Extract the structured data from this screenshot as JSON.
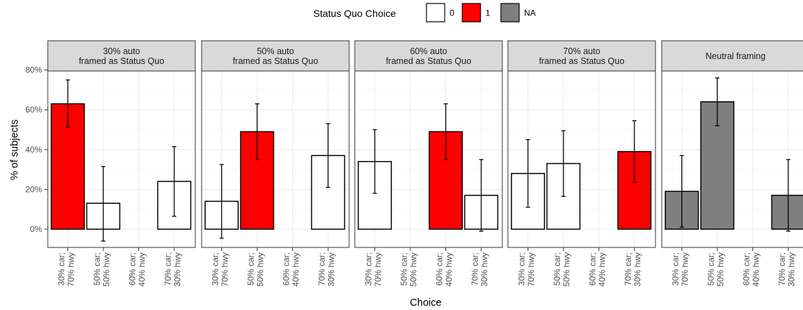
{
  "chart_data": {
    "type": "bar",
    "xlabel": "Choice",
    "ylabel": "% of subjects",
    "ylim": [
      -9,
      91
    ],
    "y_ticks": [
      0,
      20,
      40,
      60,
      80
    ],
    "y_tick_labels": [
      "0%",
      "20%",
      "40%",
      "60%",
      "80%"
    ],
    "categories": [
      "30% car;\n70% hwy",
      "50% car;\n50% hwy",
      "60% car;\n40% hwy",
      "70% car;\n30% hwy"
    ],
    "grid": true,
    "legend": {
      "title": "Status Quo Choice",
      "placement": "top-center",
      "items": [
        {
          "label": "0",
          "color": "#ffffff"
        },
        {
          "label": "1",
          "color": "#ff0000"
        },
        {
          "label": "NA",
          "color": "#7f7f7f"
        }
      ]
    },
    "panels": [
      {
        "title": "30% auto\nframed as Status Quo",
        "bars": [
          {
            "category": 0,
            "value": 63,
            "lower": 51,
            "upper": 75,
            "status": "1"
          },
          {
            "category": 1,
            "value": 13,
            "lower": -6,
            "upper": 31.5,
            "status": "0"
          },
          {
            "category": 3,
            "value": 24,
            "lower": 6.5,
            "upper": 41.5,
            "status": "0"
          }
        ]
      },
      {
        "title": "50% auto\nframed as Status Quo",
        "bars": [
          {
            "category": 0,
            "value": 14,
            "lower": -4.5,
            "upper": 32.5,
            "status": "0"
          },
          {
            "category": 1,
            "value": 49,
            "lower": 35,
            "upper": 63,
            "status": "1"
          },
          {
            "category": 3,
            "value": 37,
            "lower": 21,
            "upper": 53,
            "status": "0"
          }
        ]
      },
      {
        "title": "60% auto\nframed as Status Quo",
        "bars": [
          {
            "category": 0,
            "value": 34,
            "lower": 18,
            "upper": 50,
            "status": "0"
          },
          {
            "category": 2,
            "value": 49,
            "lower": 35,
            "upper": 63,
            "status": "1"
          },
          {
            "category": 3,
            "value": 17,
            "lower": -1,
            "upper": 35,
            "status": "0"
          }
        ]
      },
      {
        "title": "70% auto\nframed as Status Quo",
        "bars": [
          {
            "category": 0,
            "value": 28,
            "lower": 11,
            "upper": 45,
            "status": "0"
          },
          {
            "category": 1,
            "value": 33,
            "lower": 16.5,
            "upper": 49.5,
            "status": "0"
          },
          {
            "category": 3,
            "value": 39,
            "lower": 23.5,
            "upper": 54.5,
            "status": "1"
          }
        ]
      },
      {
        "title": "Neutral framing",
        "bars": [
          {
            "category": 0,
            "value": 19,
            "lower": 1,
            "upper": 37,
            "status": "NA"
          },
          {
            "category": 1,
            "value": 64,
            "lower": 52,
            "upper": 76,
            "status": "NA"
          },
          {
            "category": 3,
            "value": 17,
            "lower": -1,
            "upper": 35,
            "status": "NA"
          }
        ]
      }
    ]
  }
}
